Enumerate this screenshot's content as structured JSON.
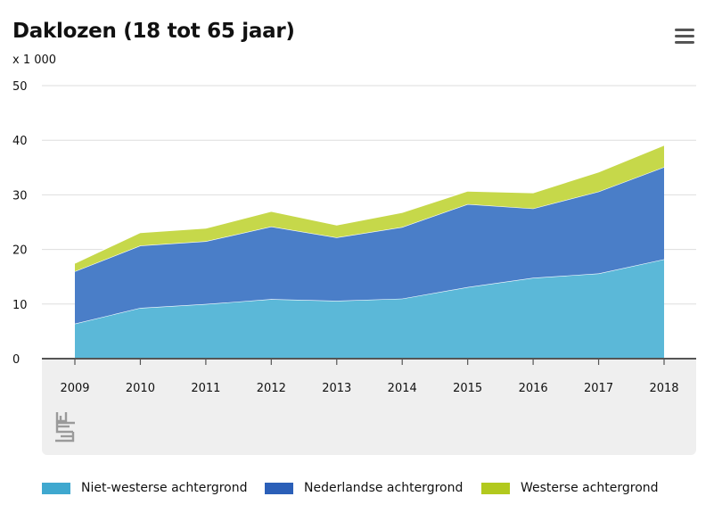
{
  "header": {
    "title": "Daklozen (18 tot 65 jaar)",
    "unit": "x 1 000",
    "menu_icon": "hamburger-menu-icon"
  },
  "chart_data": {
    "type": "area",
    "stacked": true,
    "categories": [
      "2009",
      "2010",
      "2011",
      "2012",
      "2013",
      "2014",
      "2015",
      "2016",
      "2017",
      "2018"
    ],
    "series": [
      {
        "name": "Niet-westerse achtergrond",
        "color": "#5bb8d8",
        "values": [
          6.4,
          9.3,
          10.0,
          10.9,
          10.6,
          11.0,
          13.1,
          14.8,
          15.6,
          18.2
        ]
      },
      {
        "name": "Nederlandse achtergrond",
        "color": "#4a7ec8",
        "values": [
          9.6,
          11.4,
          11.5,
          13.3,
          11.6,
          13.1,
          15.2,
          12.7,
          15.0,
          16.9
        ]
      },
      {
        "name": "Westerse achtergrond",
        "color": "#c6d84a",
        "values": [
          1.5,
          2.4,
          2.4,
          2.8,
          2.3,
          2.7,
          2.4,
          2.9,
          3.6,
          4.0
        ]
      }
    ],
    "ylim": [
      0,
      50
    ],
    "yticks": [
      0,
      10,
      20,
      30,
      40,
      50
    ],
    "grid": true,
    "legend_position": "bottom"
  },
  "legend": [
    {
      "label": "Niet-westerse achtergrond",
      "color": "#3fa8cf"
    },
    {
      "label": "Nederlandse achtergrond",
      "color": "#2b5fb8"
    },
    {
      "label": "Westerse achtergrond",
      "color": "#b2c91e"
    }
  ],
  "logo": {
    "icon": "cbs-logo-icon"
  }
}
